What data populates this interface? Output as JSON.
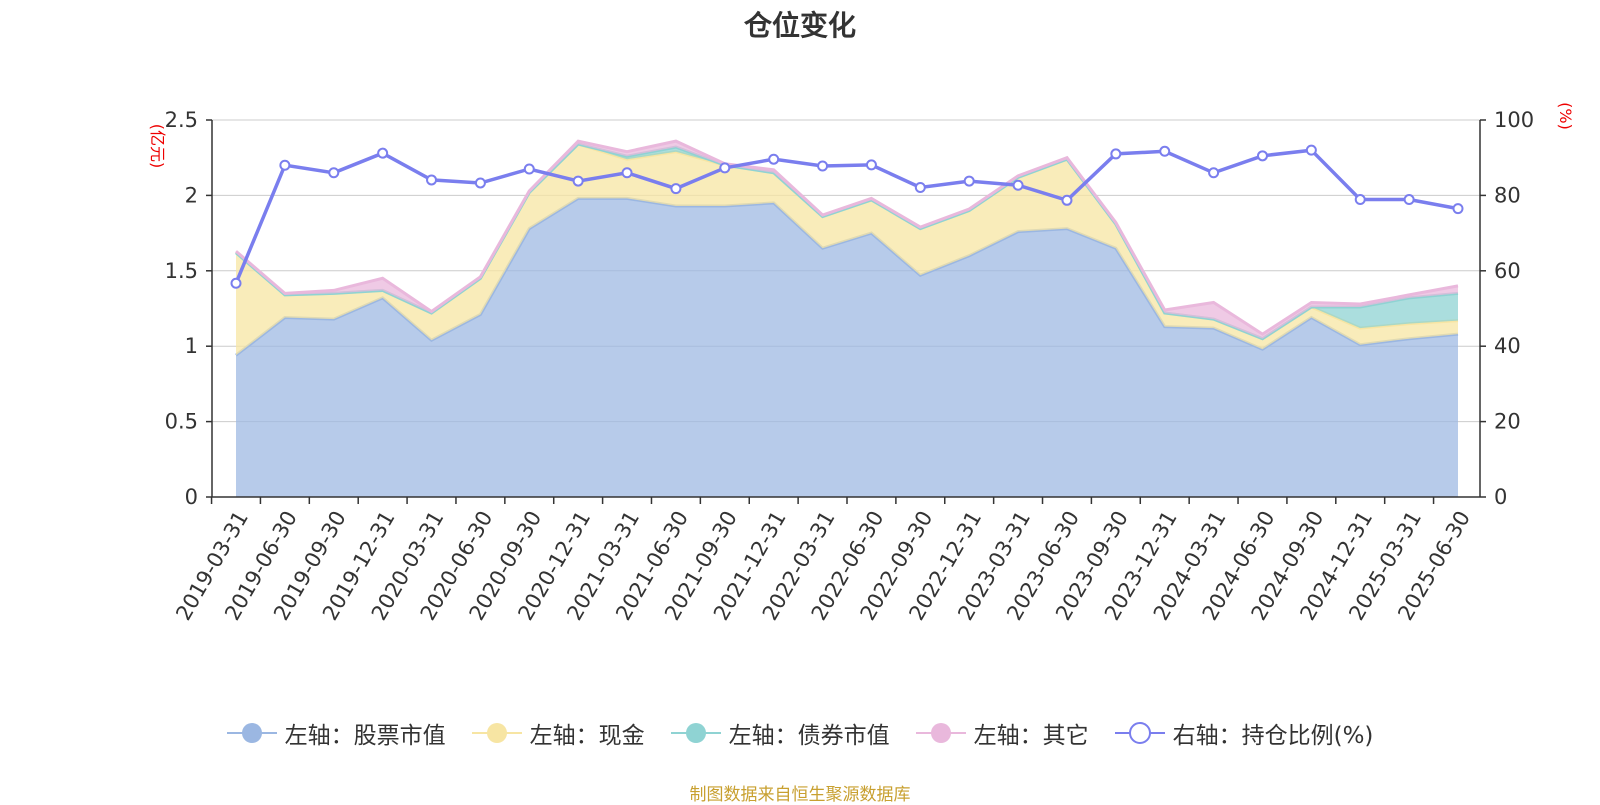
{
  "title": "仓位变化",
  "source": "制图数据来自恒生聚源数据库",
  "colors": {
    "stock": "#9bb7e2",
    "cash": "#f7e5a3",
    "bond": "#8fd3d3",
    "other": "#e9b8dc",
    "ratio": "#7a7eee",
    "unit": "#e00000",
    "grid": "#cccccc",
    "axis": "#333333"
  },
  "chart_data": {
    "type": "area",
    "title": "仓位变化",
    "left_axis": {
      "unit": "(亿元)",
      "ylim": [
        0,
        2.5
      ],
      "ticks": [
        "0",
        "0.5",
        "1",
        "1.5",
        "2",
        "2.5"
      ]
    },
    "right_axis": {
      "unit": "(%)",
      "ylim": [
        0,
        100
      ],
      "ticks": [
        "0",
        "20",
        "40",
        "60",
        "80",
        "100"
      ]
    },
    "grid": true,
    "legend_placement": "bottom",
    "categories": [
      "2019-03-31",
      "2019-06-30",
      "2019-09-30",
      "2019-12-31",
      "2020-03-31",
      "2020-06-30",
      "2020-09-30",
      "2020-12-31",
      "2021-03-31",
      "2021-06-30",
      "2021-09-30",
      "2021-12-31",
      "2022-03-31",
      "2022-06-30",
      "2022-09-30",
      "2022-12-31",
      "2023-03-31",
      "2023-06-30",
      "2023-09-30",
      "2023-12-31",
      "2024-03-31",
      "2024-06-30",
      "2024-09-30",
      "2024-12-31",
      "2025-03-31",
      "2025-06-30"
    ],
    "series": [
      {
        "name": "左轴：股票市值",
        "axis": "left",
        "type": "area",
        "key": "stock",
        "values": [
          0.94,
          1.19,
          1.18,
          1.32,
          1.04,
          1.21,
          1.78,
          1.98,
          1.98,
          1.93,
          1.93,
          1.95,
          1.65,
          1.75,
          1.47,
          1.6,
          1.76,
          1.78,
          1.65,
          1.13,
          1.12,
          0.98,
          1.19,
          1.01,
          1.05,
          1.08
        ]
      },
      {
        "name": "左轴：现金",
        "axis": "left",
        "type": "area",
        "key": "cash",
        "values": [
          0.68,
          0.15,
          0.17,
          0.05,
          0.18,
          0.24,
          0.24,
          0.36,
          0.26,
          0.36,
          0.27,
          0.2,
          0.21,
          0.22,
          0.31,
          0.3,
          0.36,
          0.46,
          0.16,
          0.09,
          0.06,
          0.07,
          0.07,
          0.11,
          0.1,
          0.09
        ]
      },
      {
        "name": "左轴：债券市值",
        "axis": "left",
        "type": "area",
        "key": "bond",
        "values": [
          0,
          0,
          0,
          0,
          0,
          0,
          0,
          0,
          0.02,
          0.03,
          0,
          0,
          0,
          0,
          0,
          0,
          0,
          0,
          0,
          0,
          0,
          0,
          0,
          0.14,
          0.17,
          0.18
        ]
      },
      {
        "name": "左轴：其它",
        "axis": "left",
        "type": "area",
        "key": "other",
        "values": [
          0.01,
          0.01,
          0.02,
          0.08,
          0.01,
          0.01,
          0.01,
          0.02,
          0.03,
          0.04,
          0.01,
          0.02,
          0.01,
          0.01,
          0.01,
          0.01,
          0.01,
          0.01,
          0.01,
          0.02,
          0.11,
          0.03,
          0.03,
          0.02,
          0.02,
          0.05
        ]
      },
      {
        "name": "右轴：持仓比例(%)",
        "axis": "right",
        "type": "line",
        "key": "ratio",
        "values": [
          56.7,
          88.0,
          86.0,
          91.2,
          84.1,
          83.3,
          87.0,
          83.8,
          86.0,
          81.8,
          87.3,
          89.6,
          87.8,
          88.1,
          82.1,
          83.8,
          82.7,
          78.7,
          91.0,
          91.7,
          86.0,
          90.5,
          92.0,
          78.9,
          78.9,
          76.5
        ]
      }
    ]
  }
}
